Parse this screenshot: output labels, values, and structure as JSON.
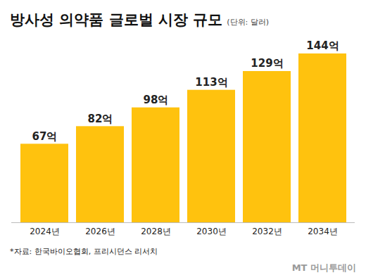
{
  "chart_data": {
    "type": "bar",
    "title": "방사성 의약품 글로벌 시장 규모",
    "subtitle": "(단위: 달러)",
    "categories": [
      "2024년",
      "2026년",
      "2028년",
      "2030년",
      "2032년",
      "2034년"
    ],
    "values": [
      67,
      82,
      98,
      113,
      129,
      144
    ],
    "value_labels": [
      "67억",
      "82억",
      "98억",
      "113억",
      "129억",
      "144억"
    ],
    "color": "#FFC20E",
    "ylim": [
      0,
      144
    ],
    "data_labels": true,
    "tick_labels": "x",
    "source": "*자료: 한국바이오협회, 프리시던스 리서치",
    "credit": "MT 머니투데이"
  }
}
